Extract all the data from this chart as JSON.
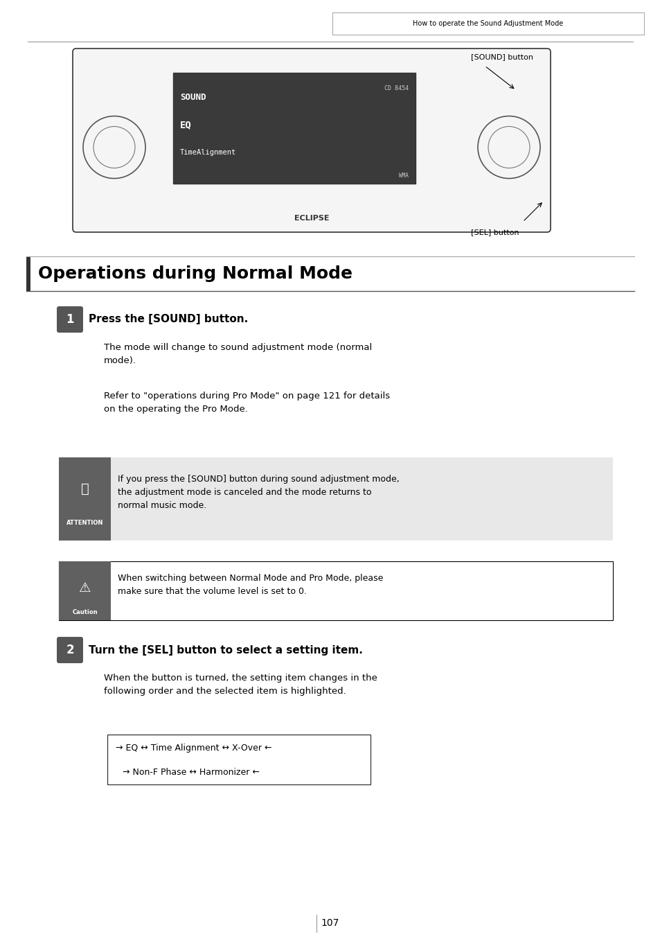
{
  "bg_color": "#ffffff",
  "page_width": 9.54,
  "page_height": 13.55,
  "header_text": "How to operate the Sound Adjustment Mode",
  "sound_button_label": "[SOUND] button",
  "sel_button_label": "[SEL] button",
  "section_title": "Operations during Normal Mode",
  "step1_num": "1",
  "step1_text": "Press the [SOUND] button.",
  "step1_body1": "The mode will change to sound adjustment mode (normal\nmode).",
  "step1_body2": "Refer to \"operations during Pro Mode\" on page 121 for details\non the operating the Pro Mode.",
  "attention_text": "If you press the [SOUND] button during sound adjustment mode,\nthe adjustment mode is canceled and the mode returns to\nnormal music mode.",
  "attention_label": "ATTENTION",
  "caution_text": "When switching between Normal Mode and Pro Mode, please\nmake sure that the volume level is set to 0.",
  "caution_label": "Caution",
  "step2_num": "2",
  "step2_text": "Turn the [SEL] button to select a setting item.",
  "step2_body": "When the button is turned, the setting item changes in the\nfollowing order and the selected item is highlighted.",
  "flow_line1": "→ EQ ↔ Time Alignment ↔ X-Over ←",
  "flow_line2": "→ Non-F Phase ↔ Harmonizer ←",
  "page_number": "107",
  "attention_bg": "#606060",
  "attention_box_bg": "#e8e8e8",
  "caution_bg": "#606060",
  "caution_box_border": "#000000",
  "text_color": "#000000",
  "header_box_border": "#aaaaaa"
}
